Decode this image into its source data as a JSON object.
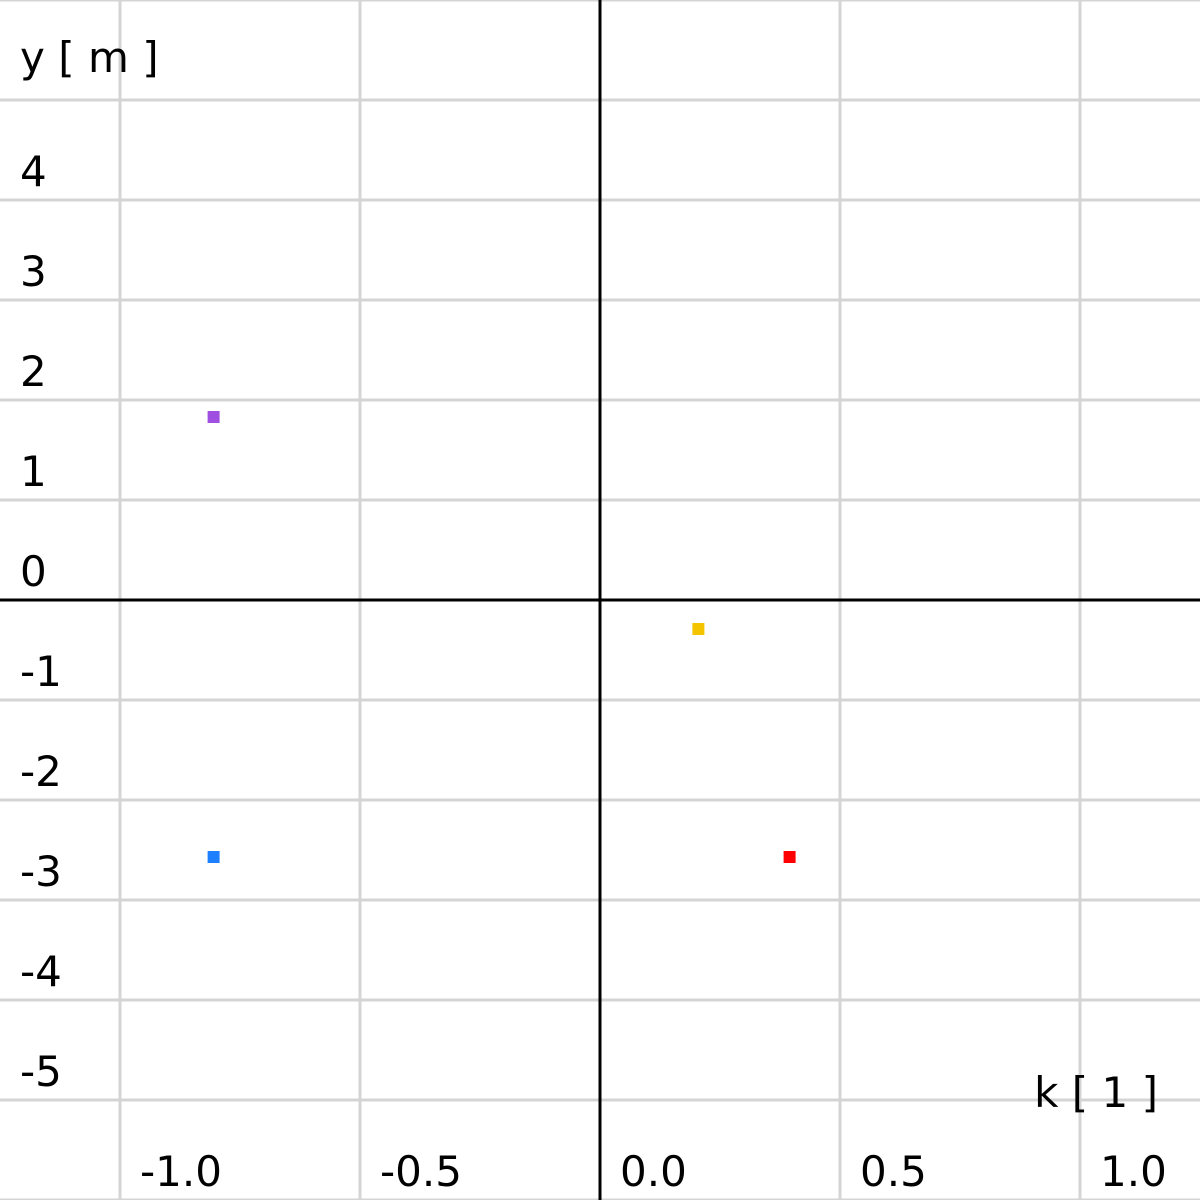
{
  "chart_data": {
    "type": "scatter",
    "xlabel": "k [ 1 ]",
    "ylabel": "y [ m ]",
    "xlim": [
      -1.25,
      1.25
    ],
    "ylim": [
      -6.0,
      6.0
    ],
    "x_ticks": [
      -1.0,
      -0.5,
      0.0,
      0.5,
      1.0
    ],
    "x_tick_labels": [
      "-1.0",
      "-0.5",
      "0.0",
      "0.5",
      "1.0"
    ],
    "y_ticks": [
      4,
      3,
      2,
      1,
      0,
      -1,
      -2,
      -3,
      -4,
      -5
    ],
    "y_tick_labels": [
      "4",
      "3",
      "2",
      "1",
      "0",
      "-1",
      "-2",
      "-3",
      "-4",
      "-5"
    ],
    "grid": true,
    "points": [
      {
        "x": -0.805,
        "y": 1.83,
        "color": "#a050e0"
      },
      {
        "x": -0.805,
        "y": -2.57,
        "color": "#1e80ff"
      },
      {
        "x": 0.205,
        "y": -0.29,
        "color": "#f5c400"
      },
      {
        "x": 0.395,
        "y": -2.57,
        "color": "#ff0000"
      }
    ]
  }
}
